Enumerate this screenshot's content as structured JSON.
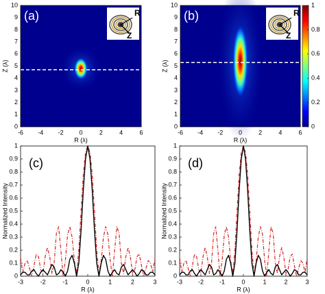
{
  "chart_data": [
    {
      "type": "heatmap",
      "panel_label": "(a)",
      "xlabel": "R (λ)",
      "ylabel": "Z (λ)",
      "xlim": [
        -6,
        6
      ],
      "xticks": [
        -6,
        -4,
        -2,
        0,
        2,
        4,
        6
      ],
      "ylim": [
        0,
        10
      ],
      "yticks": [
        0,
        1,
        2,
        3,
        4,
        5,
        6,
        7,
        8,
        9,
        10
      ],
      "dashed_line_z": 4.7,
      "focus": {
        "r": 0,
        "z": 4.8,
        "length": 1.5,
        "width": 0.7
      },
      "inset_labels": [
        "R",
        "Z"
      ]
    },
    {
      "type": "heatmap",
      "panel_label": "(b)",
      "xlabel": "R (λ)",
      "ylabel": "Z (λ)",
      "xlim": [
        -6,
        6
      ],
      "xticks": [
        -6,
        -4,
        -2,
        0,
        2,
        4,
        6
      ],
      "ylim": [
        0,
        10
      ],
      "yticks": [
        0,
        1,
        2,
        3,
        4,
        5,
        6,
        7,
        8,
        9,
        10
      ],
      "dashed_line_z": 5.3,
      "focus": {
        "r": 0,
        "z": 5.4,
        "length": 5.0,
        "width": 0.8
      },
      "inset_labels": [
        "R",
        "Z"
      ],
      "colorbar": {
        "lim": [
          0,
          1
        ],
        "ticks": [
          0,
          0.2,
          0.4,
          0.6,
          0.8,
          1
        ]
      }
    },
    {
      "type": "line",
      "panel_label": "(c)",
      "xlabel": "R (λ)",
      "ylabel": "Normalized Intensity",
      "xlim": [
        -3,
        3
      ],
      "xticks": [
        -3,
        -2,
        -1,
        0,
        1,
        2,
        3
      ],
      "ylim": [
        0,
        1
      ],
      "yticks": [
        0,
        0.1,
        0.2,
        0.3,
        0.4,
        0.5,
        0.6,
        0.7,
        0.8,
        0.9,
        1
      ],
      "x": [
        -3,
        -2.9,
        -2.8,
        -2.7,
        -2.6,
        -2.5,
        -2.4,
        -2.3,
        -2.2,
        -2.1,
        -2,
        -1.9,
        -1.8,
        -1.7,
        -1.6,
        -1.5,
        -1.4,
        -1.3,
        -1.2,
        -1.1,
        -1,
        -0.9,
        -0.8,
        -0.7,
        -0.6,
        -0.5,
        -0.4,
        -0.3,
        -0.2,
        -0.1,
        0,
        0.1,
        0.2,
        0.3,
        0.4,
        0.5,
        0.6,
        0.7,
        0.8,
        0.9,
        1,
        1.1,
        1.2,
        1.3,
        1.4,
        1.5,
        1.6,
        1.7,
        1.8,
        1.9,
        2,
        2.1,
        2.2,
        2.3,
        2.4,
        2.5,
        2.6,
        2.7,
        2.8,
        2.9,
        3
      ],
      "series": [
        {
          "color": "#000000",
          "style": "solid",
          "values": [
            0.01,
            0.03,
            0.03,
            0.01,
            0.01,
            0.04,
            0.05,
            0.02,
            0,
            0.03,
            0.05,
            0.03,
            0.01,
            0.05,
            0.09,
            0.07,
            0.01,
            0.02,
            0.05,
            0.03,
            0,
            0.04,
            0.13,
            0.16,
            0.1,
            0,
            0.1,
            0.35,
            0.66,
            0.9,
            1,
            0.9,
            0.66,
            0.35,
            0.1,
            0,
            0.1,
            0.16,
            0.13,
            0.04,
            0,
            0.03,
            0.05,
            0.02,
            0.01,
            0.07,
            0.09,
            0.05,
            0.01,
            0.03,
            0.05,
            0.03,
            0,
            0.02,
            0.05,
            0.04,
            0.01,
            0.01,
            0.03,
            0.03,
            0.01
          ]
        },
        {
          "color": "#d62020",
          "style": "dashdot",
          "values": [
            0.14,
            0.03,
            0.1,
            0.12,
            0.06,
            0,
            0.08,
            0.17,
            0.15,
            0.05,
            0.02,
            0.15,
            0.22,
            0.15,
            0.02,
            0.1,
            0.33,
            0.38,
            0.2,
            0,
            0.12,
            0.32,
            0.38,
            0.3,
            0.12,
            0.02,
            0.2,
            0.5,
            0.78,
            0.95,
            1,
            0.95,
            0.78,
            0.5,
            0.2,
            0.02,
            0.12,
            0.3,
            0.38,
            0.32,
            0.12,
            0,
            0.2,
            0.38,
            0.33,
            0.1,
            0.02,
            0.15,
            0.22,
            0.15,
            0.02,
            0.05,
            0.15,
            0.17,
            0.08,
            0,
            0.06,
            0.12,
            0.1,
            0.03,
            0.14
          ]
        }
      ]
    },
    {
      "type": "line",
      "panel_label": "(d)",
      "xlabel": "R (λ)",
      "ylabel": "Normalized Intensity",
      "xlim": [
        -3,
        3
      ],
      "xticks": [
        -3,
        -2,
        -1,
        0,
        1,
        2,
        3
      ],
      "ylim": [
        0,
        1
      ],
      "yticks": [
        0,
        0.1,
        0.2,
        0.3,
        0.4,
        0.5,
        0.6,
        0.7,
        0.8,
        0.9,
        1
      ],
      "x": [
        -3,
        -2.9,
        -2.8,
        -2.7,
        -2.6,
        -2.5,
        -2.4,
        -2.3,
        -2.2,
        -2.1,
        -2,
        -1.9,
        -1.8,
        -1.7,
        -1.6,
        -1.5,
        -1.4,
        -1.3,
        -1.2,
        -1.1,
        -1,
        -0.9,
        -0.8,
        -0.7,
        -0.6,
        -0.5,
        -0.4,
        -0.3,
        -0.2,
        -0.1,
        0,
        0.1,
        0.2,
        0.3,
        0.4,
        0.5,
        0.6,
        0.7,
        0.8,
        0.9,
        1,
        1.1,
        1.2,
        1.3,
        1.4,
        1.5,
        1.6,
        1.7,
        1.8,
        1.9,
        2,
        2.1,
        2.2,
        2.3,
        2.4,
        2.5,
        2.6,
        2.7,
        2.8,
        2.9,
        3
      ],
      "series": [
        {
          "color": "#000000",
          "style": "solid",
          "values": [
            0.01,
            0.03,
            0.03,
            0.01,
            0.01,
            0.04,
            0.05,
            0.02,
            0,
            0.03,
            0.05,
            0.03,
            0.01,
            0.05,
            0.09,
            0.07,
            0.01,
            0.02,
            0.05,
            0.03,
            0,
            0.04,
            0.13,
            0.16,
            0.1,
            0,
            0.1,
            0.35,
            0.66,
            0.9,
            1,
            0.9,
            0.66,
            0.35,
            0.1,
            0,
            0.1,
            0.16,
            0.13,
            0.04,
            0,
            0.03,
            0.05,
            0.02,
            0.01,
            0.07,
            0.09,
            0.05,
            0.01,
            0.03,
            0.05,
            0.03,
            0,
            0.02,
            0.05,
            0.04,
            0.01,
            0.01,
            0.03,
            0.03,
            0.01
          ]
        },
        {
          "color": "#d62020",
          "style": "dashdot",
          "values": [
            0.14,
            0.03,
            0.1,
            0.12,
            0.06,
            0,
            0.08,
            0.17,
            0.15,
            0.05,
            0.02,
            0.15,
            0.22,
            0.15,
            0.02,
            0.1,
            0.33,
            0.38,
            0.2,
            0,
            0.12,
            0.32,
            0.38,
            0.3,
            0.12,
            0.02,
            0.2,
            0.5,
            0.78,
            0.95,
            1,
            0.95,
            0.78,
            0.5,
            0.2,
            0.02,
            0.12,
            0.3,
            0.38,
            0.32,
            0.12,
            0,
            0.2,
            0.38,
            0.33,
            0.1,
            0.02,
            0.15,
            0.22,
            0.15,
            0.02,
            0.05,
            0.15,
            0.17,
            0.08,
            0,
            0.06,
            0.12,
            0.1,
            0.03,
            0.14
          ]
        }
      ]
    }
  ]
}
